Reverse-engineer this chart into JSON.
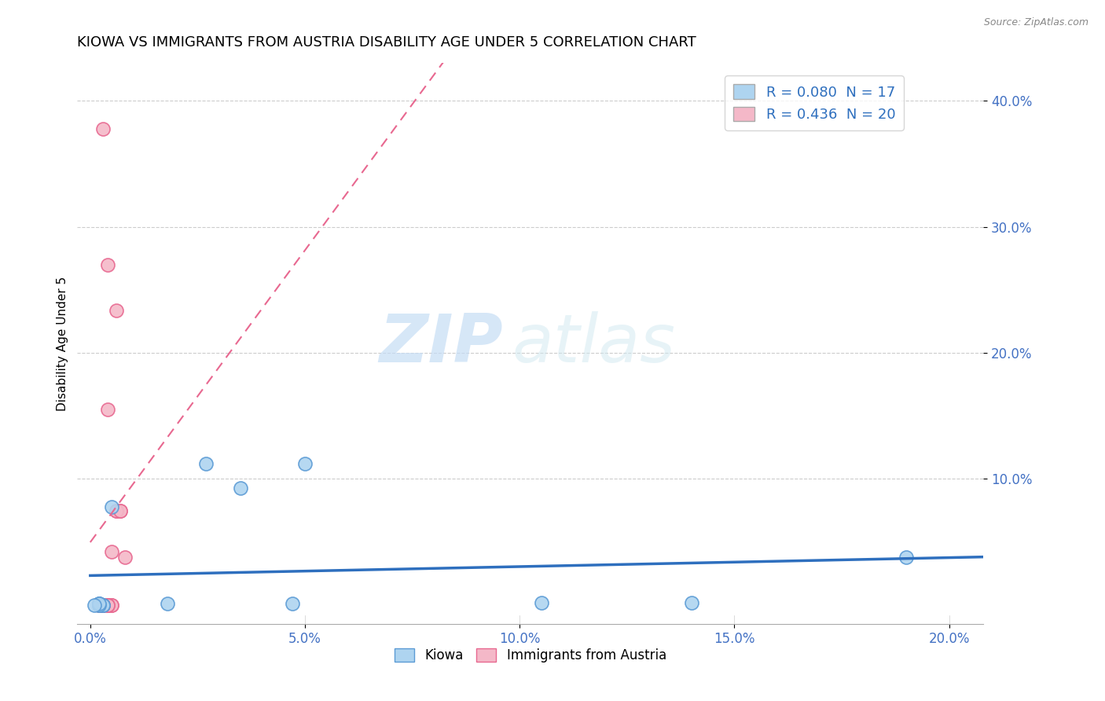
{
  "title": "KIOWA VS IMMIGRANTS FROM AUSTRIA DISABILITY AGE UNDER 5 CORRELATION CHART",
  "source": "Source: ZipAtlas.com",
  "ylabel": "Disability Age Under 5",
  "x_ticklabels": [
    "0.0%",
    "5.0%",
    "10.0%",
    "15.0%",
    "20.0%"
  ],
  "x_tickvalues": [
    0.0,
    0.05,
    0.1,
    0.15,
    0.2
  ],
  "y_ticklabels": [
    "10.0%",
    "20.0%",
    "30.0%",
    "40.0%"
  ],
  "y_tickvalues": [
    0.1,
    0.2,
    0.3,
    0.4
  ],
  "xlim": [
    -0.003,
    0.208
  ],
  "ylim": [
    -0.015,
    0.43
  ],
  "legend_entries": [
    {
      "label": "R = 0.080  N = 17",
      "color": "#aed4f0"
    },
    {
      "label": "R = 0.436  N = 20",
      "color": "#f4b8c8"
    }
  ],
  "kiowa_points": [
    [
      0.002,
      0.001
    ],
    [
      0.002,
      0.0
    ],
    [
      0.003,
      0.0
    ],
    [
      0.002,
      0.001
    ],
    [
      0.003,
      0.0
    ],
    [
      0.002,
      0.0
    ],
    [
      0.002,
      0.001
    ],
    [
      0.001,
      0.0
    ],
    [
      0.005,
      0.078
    ],
    [
      0.018,
      0.001
    ],
    [
      0.027,
      0.112
    ],
    [
      0.035,
      0.093
    ],
    [
      0.05,
      0.112
    ],
    [
      0.047,
      0.001
    ],
    [
      0.105,
      0.002
    ],
    [
      0.14,
      0.002
    ],
    [
      0.19,
      0.038
    ]
  ],
  "austria_points": [
    [
      0.003,
      0.378
    ],
    [
      0.004,
      0.27
    ],
    [
      0.006,
      0.234
    ],
    [
      0.004,
      0.155
    ],
    [
      0.006,
      0.075
    ],
    [
      0.007,
      0.075
    ],
    [
      0.006,
      0.075
    ],
    [
      0.005,
      0.042
    ],
    [
      0.007,
      0.075
    ],
    [
      0.008,
      0.038
    ],
    [
      0.005,
      0.0
    ],
    [
      0.004,
      0.0
    ],
    [
      0.005,
      0.0
    ],
    [
      0.004,
      0.0
    ],
    [
      0.003,
      0.0
    ],
    [
      0.004,
      0.0
    ],
    [
      0.003,
      0.0
    ],
    [
      0.002,
      0.0
    ],
    [
      0.002,
      0.0
    ],
    [
      0.003,
      0.0
    ]
  ],
  "kiowa_color": "#aed4f0",
  "kiowa_edge_color": "#5b9bd5",
  "austria_color": "#f4b8c8",
  "austria_edge_color": "#e86890",
  "background_color": "#ffffff",
  "grid_color": "#cccccc",
  "watermark_zip": "ZIP",
  "watermark_atlas": "atlas",
  "trend_kiowa_color": "#2e6fbe",
  "trend_austria_color": "#e86890",
  "trend_austria_dashed": true
}
